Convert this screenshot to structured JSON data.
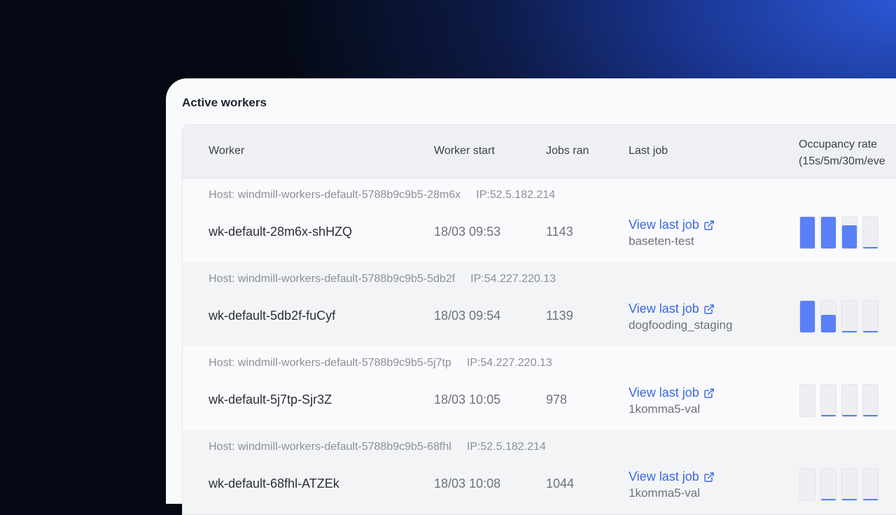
{
  "title": "Active workers",
  "headers": {
    "worker": "Worker",
    "start": "Worker start",
    "jobs": "Jobs ran",
    "last": "Last job",
    "occ1": "Occupancy rate",
    "occ2": "(15s/5m/30m/eve"
  },
  "workers": [
    {
      "host": "Host: windmill-workers-default-5788b9c9b5-28m6x",
      "ip": "IP:52.5.182.214",
      "name": "wk-default-28m6x-shHZQ",
      "start": "18/03 09:53",
      "jobs": "1143",
      "link": "View last job",
      "last": "baseten-test",
      "occupancy": [
        1,
        1,
        0.74,
        0.04
      ]
    },
    {
      "host": "Host: windmill-workers-default-5788b9c9b5-5db2f",
      "ip": "IP:54.227.220.13",
      "name": "wk-default-5db2f-fuCyf",
      "start": "18/03 09:54",
      "jobs": "1139",
      "link": "View last job",
      "last": "dogfooding_staging",
      "occupancy": [
        1,
        0.55,
        0.02,
        0.02
      ]
    },
    {
      "host": "Host: windmill-workers-default-5788b9c9b5-5j7tp",
      "ip": "IP:54.227.220.13",
      "name": "wk-default-5j7tp-Sjr3Z",
      "start": "18/03 10:05",
      "jobs": "978",
      "link": "View last job",
      "last": "1komma5-val",
      "occupancy": [
        0,
        0.03,
        0.03,
        0.04
      ]
    },
    {
      "host": "Host: windmill-workers-default-5788b9c9b5-68fhl",
      "ip": "IP:52.5.182.214",
      "name": "wk-default-68fhl-ATZEk",
      "start": "18/03 10:08",
      "jobs": "1044",
      "link": "View last job",
      "last": "1komma5-val",
      "occupancy": [
        0,
        0.03,
        0.04,
        0.05
      ]
    }
  ],
  "colors": {
    "accent": "#3a66e0",
    "bar_fill": "#5a80f8"
  }
}
